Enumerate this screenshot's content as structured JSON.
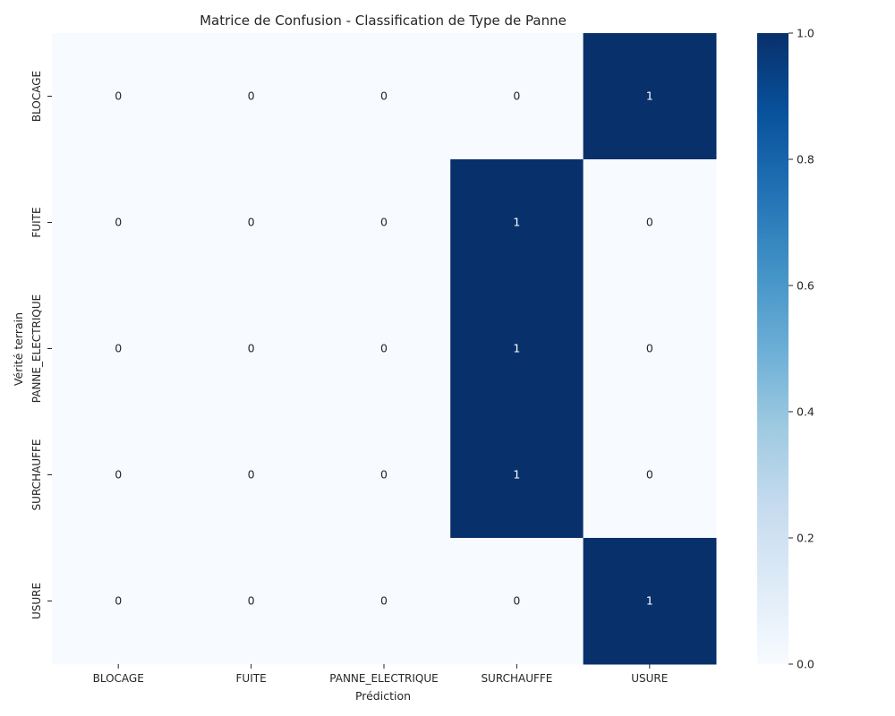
{
  "chart_data": {
    "type": "heatmap",
    "title": "Matrice de Confusion - Classification de Type de Panne",
    "xlabel": "Prédiction",
    "ylabel": "Vérité terrain",
    "x_categories": [
      "BLOCAGE",
      "FUITE",
      "PANNE_ELECTRIQUE",
      "SURCHAUFFE",
      "USURE"
    ],
    "y_categories": [
      "BLOCAGE",
      "FUITE",
      "PANNE_ELECTRIQUE",
      "SURCHAUFFE",
      "USURE"
    ],
    "matrix": [
      [
        0,
        0,
        0,
        0,
        1
      ],
      [
        0,
        0,
        0,
        1,
        0
      ],
      [
        0,
        0,
        0,
        1,
        0
      ],
      [
        0,
        0,
        0,
        1,
        0
      ],
      [
        0,
        0,
        0,
        0,
        1
      ]
    ],
    "colorbar": {
      "min": 0.0,
      "max": 1.0,
      "ticks": [
        "0.0",
        "0.2",
        "0.4",
        "0.6",
        "0.8",
        "1.0"
      ],
      "colormap": "Blues",
      "low_color": "#f7fbff",
      "high_color": "#08306b"
    },
    "grid": false
  }
}
